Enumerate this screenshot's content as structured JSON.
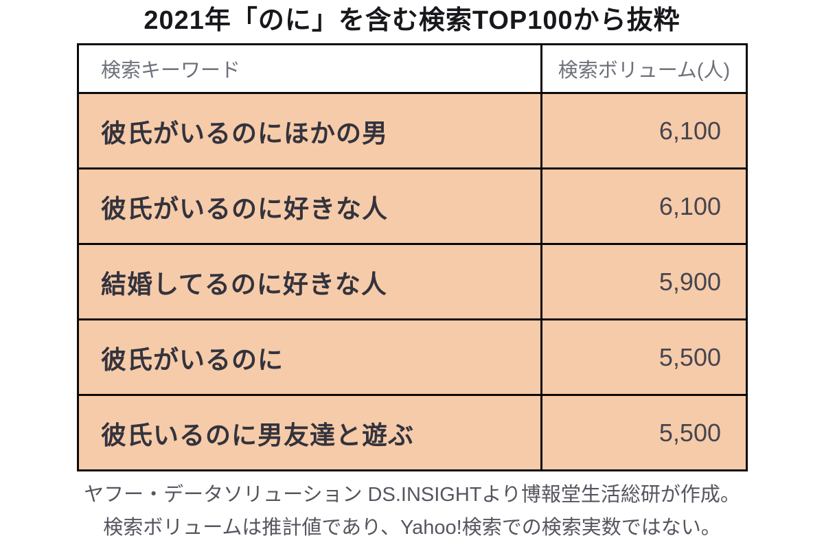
{
  "title": "2021年「のに」を含む検索TOP100から抜粋",
  "table": {
    "header": {
      "keyword": "検索キーワード",
      "volume": "検索ボリューム(人)"
    },
    "rows": [
      {
        "keyword": "彼氏がいるのにほかの男",
        "volume": "6,100"
      },
      {
        "keyword": "彼氏がいるのに好きな人",
        "volume": "6,100"
      },
      {
        "keyword": "結婚してるのに好きな人",
        "volume": "5,900"
      },
      {
        "keyword": "彼氏がいるのに",
        "volume": "5,500"
      },
      {
        "keyword": "彼氏いるのに男友達と遊ぶ",
        "volume": "5,500"
      }
    ]
  },
  "footer": {
    "line1": "ヤフー・データソリューション DS.INSIGHTより博報堂生活総研が作成。",
    "line2": "検索ボリュームは推計値であり、Yahoo!検索での検索実数ではない。"
  },
  "colors": {
    "row_background": "#F6CBA9",
    "border": "#0A0A0A",
    "title_text": "#17171C",
    "header_text": "#6E707B",
    "keyword_text": "#33333D",
    "volume_text": "#45454F",
    "footer_text": "#55555F"
  },
  "chart_data": {
    "type": "table",
    "title": "2021年「のに」を含む検索TOP100から抜粋",
    "columns": [
      "検索キーワード",
      "検索ボリューム(人)"
    ],
    "rows": [
      [
        "彼氏がいるのにほかの男",
        6100
      ],
      [
        "彼氏がいるのに好きな人",
        6100
      ],
      [
        "結婚してるのに好きな人",
        5900
      ],
      [
        "彼氏がいるのに",
        5500
      ],
      [
        "彼氏いるのに男友達と遊ぶ",
        5500
      ]
    ],
    "notes": [
      "ヤフー・データソリューション DS.INSIGHTより博報堂生活総研が作成。",
      "検索ボリュームは推計値であり、Yahoo!検索での検索実数ではない。"
    ]
  }
}
